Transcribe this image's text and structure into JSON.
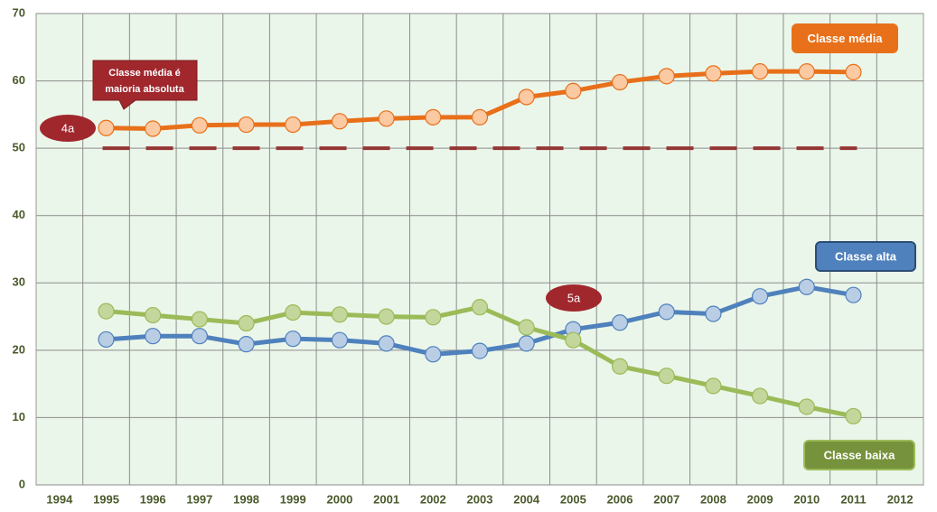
{
  "chart_data": {
    "type": "line",
    "categories": [
      "1994",
      "1995",
      "1996",
      "1997",
      "1998",
      "1999",
      "2000",
      "2001",
      "2002",
      "2003",
      "2004",
      "2005",
      "2006",
      "2007",
      "2008",
      "2009",
      "2010",
      "2011",
      "2012"
    ],
    "series": [
      {
        "name": "Classe média",
        "color": "#e8701a",
        "marker_fill": "#fbc9a2",
        "values": [
          null,
          53.0,
          52.9,
          53.4,
          53.5,
          53.5,
          54.0,
          54.4,
          54.6,
          54.6,
          57.6,
          58.5,
          59.8,
          60.7,
          61.1,
          61.4,
          61.4,
          61.3,
          null
        ]
      },
      {
        "name": "Classe alta",
        "color": "#4f81bd",
        "marker_fill": "#b9cde5",
        "values": [
          null,
          21.6,
          22.1,
          22.1,
          20.9,
          21.7,
          21.5,
          21.0,
          19.4,
          19.9,
          21.0,
          23.1,
          24.1,
          25.7,
          25.4,
          28.0,
          29.4,
          28.2,
          null
        ]
      },
      {
        "name": "Classe baixa",
        "color": "#9bbb59",
        "marker_fill": "#c3d69b",
        "values": [
          null,
          25.8,
          25.2,
          24.6,
          24.0,
          25.6,
          25.3,
          25.0,
          24.9,
          26.4,
          23.4,
          21.5,
          17.6,
          16.2,
          14.7,
          13.2,
          11.6,
          10.2,
          null
        ]
      }
    ],
    "reference_line": {
      "value": 50,
      "color": "#943634"
    },
    "ylim": [
      0,
      70
    ],
    "yticks": [
      0,
      10,
      20,
      30,
      40,
      50,
      60,
      70
    ],
    "grid": true,
    "annotations": {
      "callout_lines": [
        "Classe média é",
        "maioria absoluta"
      ],
      "marker_4": "4a",
      "marker_5": "5a"
    }
  }
}
